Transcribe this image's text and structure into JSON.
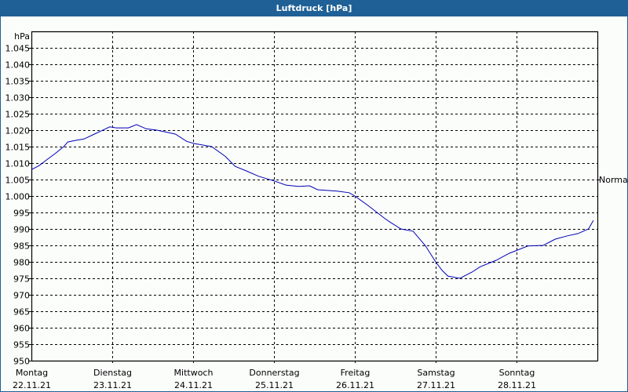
{
  "window": {
    "title": "Luftdruck [hPa]"
  },
  "colors": {
    "title_bar": "#1f6096",
    "background": "#fbfdfb",
    "line": "#0000b4",
    "grid": "#000000"
  },
  "chart_data": {
    "type": "line",
    "title": "Luftdruck [hPa]",
    "xlabel": "",
    "ylabel": "hPa",
    "ylim": [
      950,
      1050
    ],
    "y_ticks": [
      950,
      955,
      960,
      965,
      970,
      975,
      980,
      985,
      990,
      995,
      1000,
      1005,
      1010,
      1015,
      1020,
      1025,
      1030,
      1035,
      1040,
      1045
    ],
    "y_tick_labels": [
      "950",
      "955",
      "960",
      "965",
      "970",
      "975",
      "980",
      "985",
      "990",
      "995",
      "1.000",
      "1.005",
      "1.010",
      "1.015",
      "1.020",
      "1.025",
      "1.030",
      "1.035",
      "1.040",
      "1.045"
    ],
    "x_ticks": [
      {
        "day": "Montag",
        "date": "22.11.21"
      },
      {
        "day": "Dienstag",
        "date": "23.11.21"
      },
      {
        "day": "Mittwoch",
        "date": "24.11.21"
      },
      {
        "day": "Donnerstag",
        "date": "25.11.21"
      },
      {
        "day": "Freitag",
        "date": "26.11.21"
      },
      {
        "day": "Samstag",
        "date": "27.11.21"
      },
      {
        "day": "Sonntag",
        "date": "28.11.21"
      }
    ],
    "xlim_days": [
      0,
      7
    ],
    "grid": true,
    "grid_style": "dashed",
    "annotations": [
      {
        "text": "Normal",
        "y": 1005,
        "position": "right"
      }
    ],
    "series": [
      {
        "name": "Luftdruck",
        "x_days": [
          0.0,
          0.1,
          0.2,
          0.3,
          0.4,
          0.45,
          0.55,
          0.65,
          0.78,
          0.9,
          0.97,
          1.05,
          1.2,
          1.3,
          1.42,
          1.55,
          1.65,
          1.78,
          1.92,
          2.02,
          2.23,
          2.4,
          2.52,
          2.67,
          2.81,
          3.0,
          3.15,
          3.3,
          3.44,
          3.54,
          3.78,
          3.93,
          4.0,
          4.17,
          4.38,
          4.44,
          4.57,
          4.72,
          4.87,
          5.0,
          5.08,
          5.15,
          5.3,
          5.45,
          5.55,
          5.75,
          5.91,
          6.14,
          6.33,
          6.48,
          6.63,
          6.76,
          6.89,
          6.95
        ],
        "values": [
          1008.0,
          1009.3,
          1011.2,
          1013.0,
          1015.0,
          1016.4,
          1016.9,
          1017.3,
          1018.8,
          1020.2,
          1021.0,
          1020.7,
          1020.7,
          1021.7,
          1020.4,
          1020.0,
          1019.5,
          1018.8,
          1016.6,
          1015.9,
          1015.0,
          1012.0,
          1009.0,
          1007.5,
          1006.0,
          1004.6,
          1003.3,
          1002.9,
          1003.1,
          1001.9,
          1001.5,
          1001.0,
          1000.0,
          997.0,
          993.0,
          992.0,
          990.0,
          989.3,
          985.0,
          980.0,
          977.4,
          975.7,
          975.0,
          976.9,
          978.5,
          980.5,
          982.6,
          984.8,
          985.0,
          986.9,
          987.9,
          988.6,
          990.0,
          992.6
        ]
      }
    ]
  }
}
